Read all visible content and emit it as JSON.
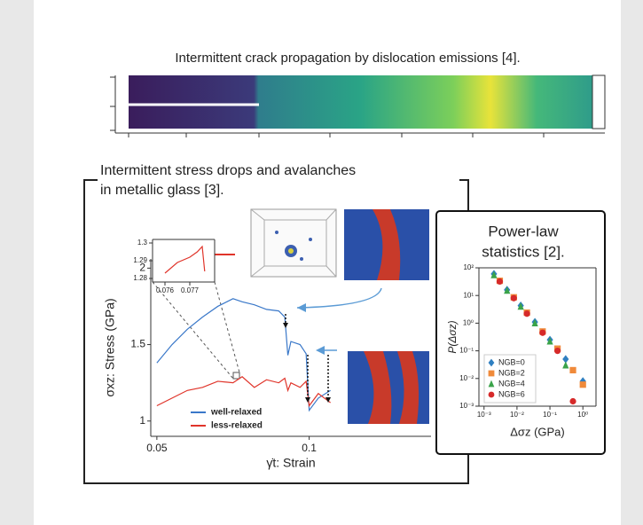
{
  "crack_panel": {
    "caption": "Intermittent crack propagation by dislocation emissions [4]."
  },
  "chart_data": [
    {
      "type": "line",
      "title": [
        "Intermittent stress drops and avalanches",
        "in metallic glass [3]."
      ],
      "x_label": "γ̇t: Strain",
      "y_label": "σxz: Stress (GPa)",
      "x": [
        0.05,
        0.055,
        0.06,
        0.065,
        0.07,
        0.075,
        0.078,
        0.082,
        0.086,
        0.09,
        0.092,
        0.093,
        0.094,
        0.097,
        0.099,
        0.1,
        0.103,
        0.107
      ],
      "series": [
        {
          "name": "well-relaxed",
          "color": "#3a78c9",
          "values": [
            1.38,
            1.5,
            1.6,
            1.68,
            1.75,
            1.8,
            1.78,
            1.76,
            1.73,
            1.72,
            1.68,
            1.43,
            1.52,
            1.5,
            1.44,
            1.07,
            1.15,
            1.2
          ]
        },
        {
          "name": "less-relaxed",
          "color": "#e0342a",
          "values": [
            1.1,
            1.15,
            1.2,
            1.22,
            1.26,
            1.25,
            1.29,
            1.22,
            1.27,
            1.25,
            1.28,
            1.2,
            1.25,
            1.22,
            1.26,
            1.1,
            1.18,
            1.12
          ]
        }
      ],
      "xlim": [
        0.048,
        0.14
      ],
      "ylim": [
        0.9,
        2.06
      ],
      "xticks": [
        0.05,
        0.1
      ],
      "yticks": [
        1,
        1.5,
        2
      ]
    },
    {
      "type": "line",
      "x": [
        0.076,
        0.0765,
        0.077,
        0.0773,
        0.0775,
        0.0776
      ],
      "series": [
        {
          "color": "#e0342a",
          "values": [
            1.283,
            1.289,
            1.292,
            1.295,
            1.298,
            1.284
          ]
        }
      ],
      "xlim": [
        0.0755,
        0.078
      ],
      "ylim": [
        1.278,
        1.302
      ],
      "xticks": [
        0.076,
        0.077
      ],
      "yticks": [
        1.28,
        1.29,
        1.3
      ]
    },
    {
      "type": "scatter",
      "title": [
        "Power-law",
        "statistics [2]."
      ],
      "x_label": "Δσz (GPa)",
      "y_label": "P(Δσz)",
      "log_x": true,
      "log_y": true,
      "series": [
        {
          "name": "NGB=0",
          "color": "#2f7fc1",
          "marker": "diamond",
          "x": [
            0.002,
            0.005,
            0.013,
            0.035,
            0.1,
            0.3,
            1
          ],
          "values": [
            60,
            16,
            4.3,
            1.1,
            0.25,
            0.05,
            0.008
          ]
        },
        {
          "name": "NGB=2",
          "color": "#f08a3a",
          "marker": "square",
          "x": [
            0.003,
            0.008,
            0.02,
            0.06,
            0.17,
            0.5,
            1
          ],
          "values": [
            34,
            8.6,
            2.4,
            0.5,
            0.12,
            0.02,
            0.006
          ]
        },
        {
          "name": "NGB=4",
          "color": "#3aa34a",
          "marker": "triangle",
          "x": [
            0.002,
            0.005,
            0.013,
            0.035,
            0.1,
            0.3
          ],
          "values": [
            55,
            15,
            4,
            1,
            0.22,
            0.03
          ]
        },
        {
          "name": "NGB=6",
          "color": "#d62a2a",
          "marker": "circle",
          "x": [
            0.003,
            0.008,
            0.02,
            0.06,
            0.17,
            0.5
          ],
          "values": [
            32,
            8,
            2.2,
            0.45,
            0.1,
            0.0015
          ]
        }
      ],
      "xlim": [
        0.0007,
        2.5
      ],
      "ylim": [
        0.001,
        100
      ],
      "xticks": [
        {
          "value": 0.001,
          "label": "10⁻³"
        },
        {
          "value": 0.01,
          "label": "10⁻²"
        },
        {
          "value": 0.1,
          "label": "10⁻¹"
        },
        {
          "value": 1,
          "label": "10⁰"
        }
      ],
      "yticks": [
        {
          "value": 0.001,
          "label": "10⁻³"
        },
        {
          "value": 0.01,
          "label": "10⁻²"
        },
        {
          "value": 0.1,
          "label": "10⁻¹"
        },
        {
          "value": 1,
          "label": "10⁰"
        },
        {
          "value": 10,
          "label": "10¹"
        },
        {
          "value": 100,
          "label": "10²"
        }
      ]
    }
  ]
}
